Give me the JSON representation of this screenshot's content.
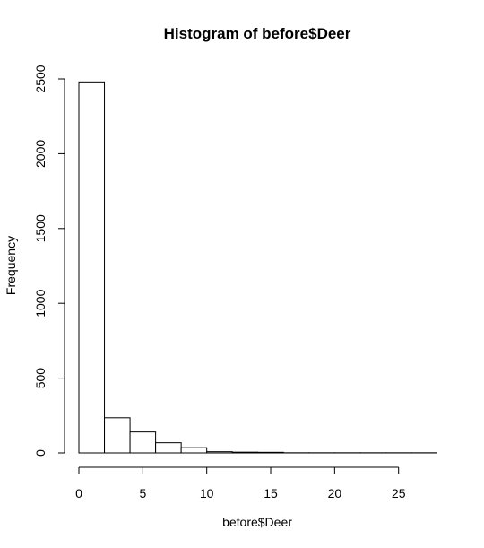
{
  "chart_data": {
    "type": "bar",
    "title": "Histogram of before$Deer",
    "xlabel": "before$Deer",
    "ylabel": "Frequency",
    "bins": [
      {
        "start": 0,
        "end": 2,
        "count": 2480
      },
      {
        "start": 2,
        "end": 4,
        "count": 235
      },
      {
        "start": 4,
        "end": 6,
        "count": 140
      },
      {
        "start": 6,
        "end": 8,
        "count": 68
      },
      {
        "start": 8,
        "end": 10,
        "count": 35
      },
      {
        "start": 10,
        "end": 12,
        "count": 8
      },
      {
        "start": 12,
        "end": 14,
        "count": 5
      },
      {
        "start": 14,
        "end": 16,
        "count": 4
      },
      {
        "start": 16,
        "end": 18,
        "count": 1
      },
      {
        "start": 18,
        "end": 20,
        "count": 1
      },
      {
        "start": 20,
        "end": 22,
        "count": 1
      },
      {
        "start": 22,
        "end": 24,
        "count": 1
      },
      {
        "start": 24,
        "end": 26,
        "count": 1
      },
      {
        "start": 26,
        "end": 28,
        "count": 1
      }
    ],
    "xlim": [
      0,
      28
    ],
    "ylim": [
      0,
      2500
    ],
    "x_ticks": [
      0,
      5,
      10,
      15,
      20,
      25
    ],
    "y_ticks": [
      0,
      500,
      1000,
      1500,
      2000,
      2500
    ],
    "grid": false,
    "bar_fill": "#ffffff",
    "bar_stroke": "#000000"
  }
}
